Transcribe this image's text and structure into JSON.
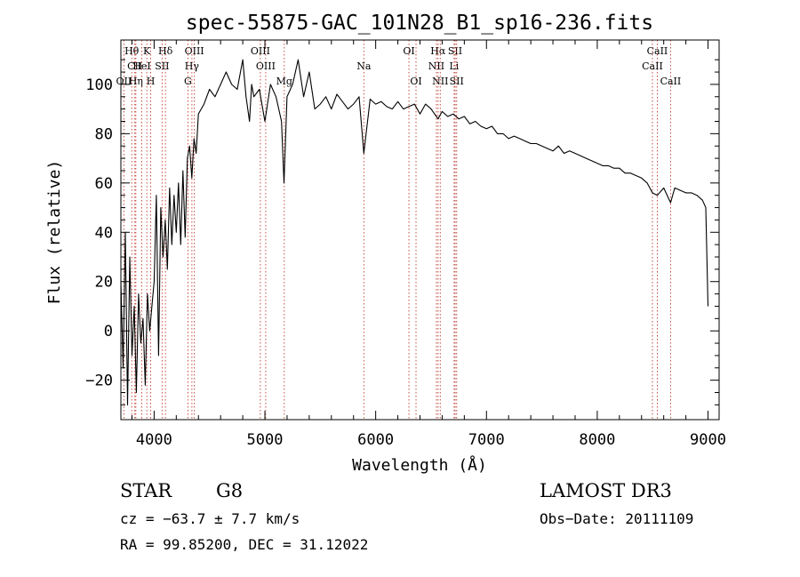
{
  "chart_data": {
    "type": "line",
    "title": "spec-55875-GAC_101N28_B1_sp16-236.fits",
    "xlabel": "Wavelength (Å)",
    "ylabel": "Flux (relative)",
    "xlim": [
      3700,
      9100
    ],
    "ylim": [
      -36,
      118
    ],
    "x_ticks": [
      4000,
      5000,
      6000,
      7000,
      8000,
      9000
    ],
    "x_tick_labels": [
      "4000",
      "5000",
      "6000",
      "7000",
      "8000",
      "9000"
    ],
    "y_ticks": [
      -20,
      0,
      20,
      40,
      60,
      80,
      100
    ],
    "y_tick_labels": [
      "−20",
      "0",
      "20",
      "40",
      "60",
      "80",
      "100"
    ],
    "series": [
      {
        "name": "spectrum",
        "x": [
          3700,
          3720,
          3740,
          3760,
          3780,
          3800,
          3820,
          3840,
          3860,
          3880,
          3900,
          3920,
          3940,
          3960,
          3980,
          4000,
          4020,
          4040,
          4060,
          4080,
          4100,
          4120,
          4140,
          4160,
          4180,
          4200,
          4220,
          4240,
          4260,
          4280,
          4300,
          4320,
          4340,
          4360,
          4380,
          4400,
          4450,
          4500,
          4550,
          4600,
          4650,
          4700,
          4750,
          4800,
          4830,
          4861,
          4880,
          4900,
          4950,
          5000,
          5050,
          5100,
          5150,
          5172,
          5200,
          5250,
          5300,
          5350,
          5400,
          5450,
          5500,
          5550,
          5600,
          5650,
          5700,
          5750,
          5800,
          5850,
          5893,
          5950,
          6000,
          6050,
          6100,
          6150,
          6200,
          6250,
          6300,
          6350,
          6400,
          6450,
          6500,
          6563,
          6600,
          6650,
          6700,
          6750,
          6800,
          6850,
          6900,
          6950,
          7000,
          7050,
          7100,
          7150,
          7200,
          7250,
          7300,
          7350,
          7400,
          7450,
          7500,
          7550,
          7600,
          7650,
          7700,
          7750,
          7800,
          7850,
          7900,
          7950,
          8000,
          8050,
          8100,
          8150,
          8200,
          8250,
          8300,
          8350,
          8400,
          8450,
          8498,
          8542,
          8600,
          8662,
          8700,
          8750,
          8800,
          8850,
          8900,
          8950,
          8980,
          9000
        ],
        "values": [
          20,
          -15,
          40,
          -30,
          30,
          -10,
          10,
          -25,
          15,
          -5,
          5,
          -22,
          15,
          0,
          10,
          20,
          55,
          -10,
          50,
          30,
          45,
          25,
          58,
          35,
          55,
          40,
          60,
          35,
          65,
          38,
          70,
          75,
          62,
          78,
          72,
          88,
          92,
          98,
          95,
          100,
          105,
          100,
          98,
          110,
          95,
          85,
          100,
          95,
          98,
          85,
          100,
          95,
          85,
          60,
          95,
          100,
          110,
          95,
          105,
          90,
          92,
          95,
          90,
          96,
          93,
          90,
          92,
          95,
          72,
          94,
          92,
          93,
          91,
          90,
          93,
          90,
          91,
          92,
          88,
          92,
          90,
          86,
          89,
          87,
          88,
          86,
          87,
          84,
          85,
          83,
          82,
          83,
          80,
          80,
          78,
          79,
          78,
          77,
          76,
          76,
          75,
          74,
          73,
          75,
          72,
          73,
          72,
          71,
          70,
          69,
          68,
          67,
          67,
          66,
          66,
          64,
          64,
          63,
          62,
          60,
          56,
          55,
          58,
          52,
          58,
          57,
          56,
          56,
          55,
          53,
          50,
          10
        ]
      }
    ],
    "lines": [
      {
        "label": "Hθ",
        "x": 3798,
        "row": 1
      },
      {
        "label": "CII",
        "x": 3826,
        "row": 2
      },
      {
        "label": "OII",
        "x": 3727,
        "row": 3
      },
      {
        "label": "HeI",
        "x": 3889,
        "row": 2
      },
      {
        "label": "Hη",
        "x": 3835,
        "row": 3
      },
      {
        "label": "K",
        "x": 3934,
        "row": 1
      },
      {
        "label": "H",
        "x": 3969,
        "row": 3
      },
      {
        "label": "SII",
        "x": 4072,
        "row": 2
      },
      {
        "label": "Hδ",
        "x": 4102,
        "row": 1
      },
      {
        "label": "OIII",
        "x": 4363,
        "row": 1
      },
      {
        "label": "Hγ",
        "x": 4341,
        "row": 2
      },
      {
        "label": "G",
        "x": 4305,
        "row": 3
      },
      {
        "label": "OIII",
        "x": 4959,
        "row": 1
      },
      {
        "label": "OIII",
        "x": 5007,
        "row": 2
      },
      {
        "label": "Mg",
        "x": 5175,
        "row": 3
      },
      {
        "label": "Na",
        "x": 5893,
        "row": 2
      },
      {
        "label": "OI",
        "x": 6300,
        "row": 1
      },
      {
        "label": "OI",
        "x": 6364,
        "row": 3
      },
      {
        "label": "Hα",
        "x": 6563,
        "row": 1
      },
      {
        "label": "SII",
        "x": 6717,
        "row": 1
      },
      {
        "label": "NII",
        "x": 6548,
        "row": 2
      },
      {
        "label": "Li",
        "x": 6708,
        "row": 2
      },
      {
        "label": "NII",
        "x": 6583,
        "row": 3
      },
      {
        "label": "SII",
        "x": 6731,
        "row": 3
      },
      {
        "label": "CaII",
        "x": 8542,
        "row": 1
      },
      {
        "label": "CaII",
        "x": 8498,
        "row": 2
      },
      {
        "label": "CaII",
        "x": 8662,
        "row": 3
      }
    ]
  },
  "info": {
    "object_class": "STAR",
    "subclass": "G8",
    "survey": "LAMOST DR3",
    "cz": "cz = −63.7 ± 7.7 km/s",
    "obs_date": "Obs−Date: 20111109",
    "coords": "RA =  99.85200, DEC =  31.12022"
  }
}
